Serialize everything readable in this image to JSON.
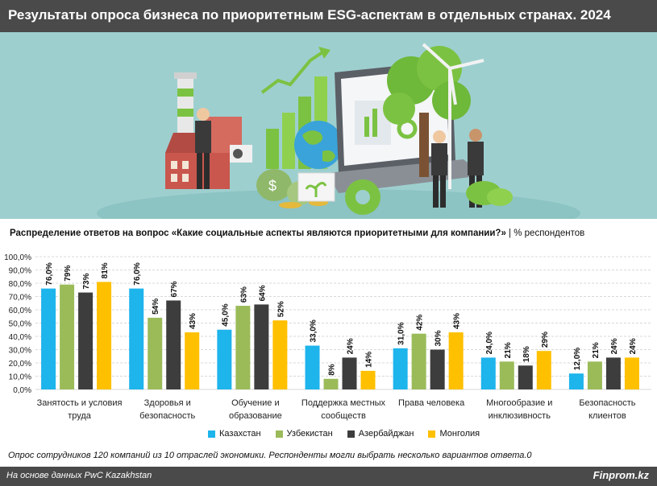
{
  "header": {
    "title": "Результаты опроса бизнеса по приоритетным ESG-аспектам в отдельных странах. 2024"
  },
  "subtitle": {
    "bold": "Распределение ответов на вопрос «Какие социальные аспекты являются приоритетными для компании?»",
    "rest": " | % респондентов"
  },
  "chart_data": {
    "type": "bar",
    "categories": [
      [
        "Занятость и условия",
        "труда"
      ],
      [
        "Здоровья и",
        "безопасность"
      ],
      [
        "Обучение и",
        "образование"
      ],
      [
        "Поддержка местных",
        "сообществ"
      ],
      [
        "Права человека"
      ],
      [
        "Многообразие и",
        "инклюзивность"
      ],
      [
        "Безопасность",
        "клиентов"
      ]
    ],
    "series": [
      {
        "name": "Казахстан",
        "color": "#1eb4ec",
        "values": [
          76,
          76,
          45,
          33,
          31,
          24,
          12
        ],
        "labels": [
          "76,0%",
          "76,0%",
          "45,0%",
          "33,0%",
          "31,0%",
          "24,0%",
          "12,0%"
        ]
      },
      {
        "name": "Узбекистан",
        "color": "#9bbb59",
        "values": [
          79,
          54,
          63,
          8,
          42,
          21,
          21
        ],
        "labels": [
          "79%",
          "54%",
          "63%",
          "8%",
          "42%",
          "21%",
          "21%"
        ]
      },
      {
        "name": "Азербайджан",
        "color": "#3d3d3d",
        "values": [
          73,
          67,
          64,
          24,
          30,
          18,
          24
        ],
        "labels": [
          "73%",
          "67%",
          "64%",
          "24%",
          "30%",
          "18%",
          "24%"
        ]
      },
      {
        "name": "Монголия",
        "color": "#ffc000",
        "values": [
          81,
          43,
          52,
          14,
          43,
          29,
          24
        ],
        "labels": [
          "81%",
          "43%",
          "52%",
          "14%",
          "43%",
          "29%",
          "24%"
        ]
      }
    ],
    "yticks": [
      "0,0%",
      "10,0%",
      "20,0%",
      "30,0%",
      "40,0%",
      "50,0%",
      "60,0%",
      "70,0%",
      "80,0%",
      "90,0%",
      "100,0%"
    ],
    "ylim": [
      0,
      100
    ],
    "grid": true,
    "legend": "bottom"
  },
  "note": "Опрос сотрудников 120 компаний из 10 отраслей экономики. Респонденты могли выбрать несколько вариантов ответа.0",
  "footer": {
    "source": "На основе данных PwC Kazakhstan",
    "brand": "Finprom.kz"
  }
}
